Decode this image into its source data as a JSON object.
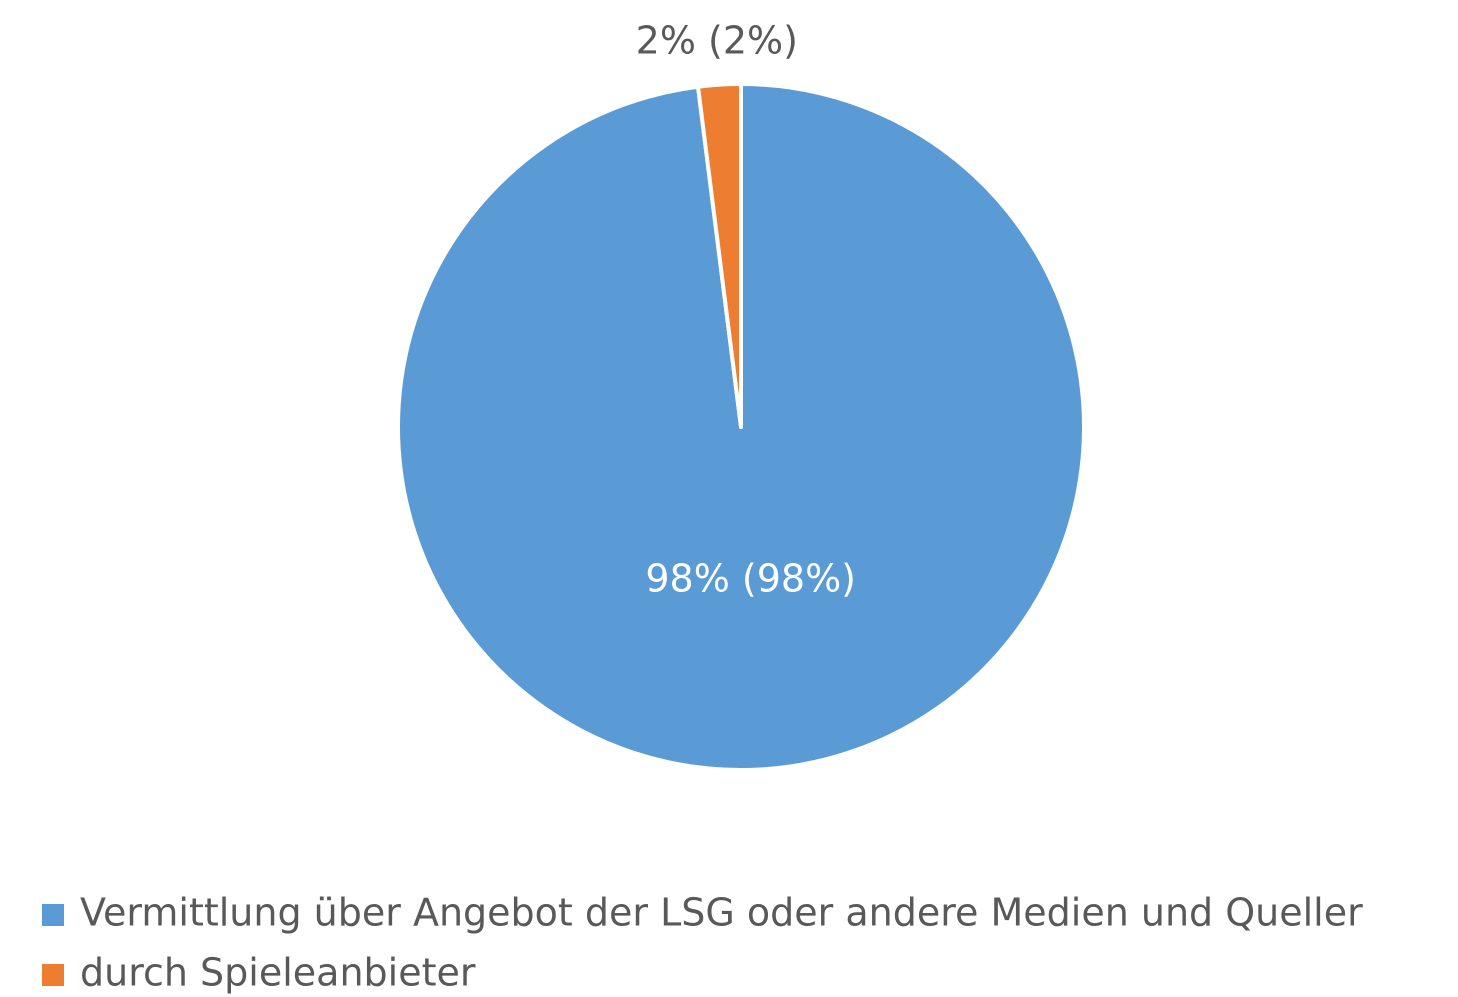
{
  "chart_data": {
    "type": "pie",
    "categories": [
      "Vermittlung über Angebot der LSG oder andere Medien und Queller",
      "durch Spieleanbieter"
    ],
    "values": [
      98,
      2
    ],
    "value_labels": [
      "98% (98%)",
      "2% (2%)"
    ],
    "colors": [
      "#5b9bd5",
      "#ed7d31"
    ],
    "legend": "bottom"
  }
}
